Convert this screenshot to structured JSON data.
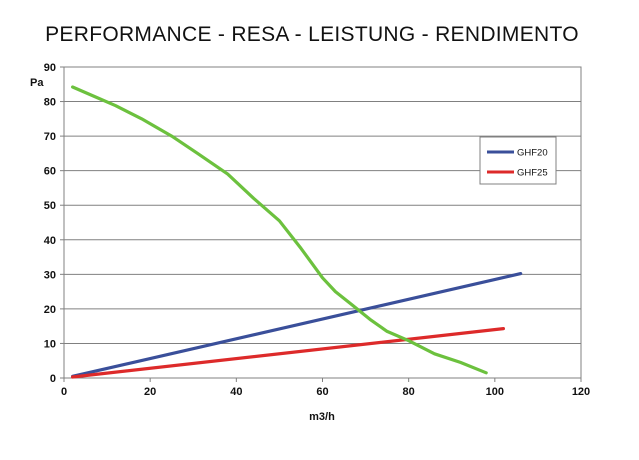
{
  "chart_data": {
    "type": "line",
    "title": "PERFORMANCE - RESA - LEISTUNG - RENDIMENTO",
    "xlabel": "m3/h",
    "ylabel": "Pa",
    "xlim": [
      0,
      120
    ],
    "ylim": [
      0,
      90
    ],
    "x_ticks": [
      0,
      20,
      40,
      60,
      80,
      100,
      120
    ],
    "y_ticks": [
      0,
      10,
      20,
      30,
      40,
      50,
      60,
      70,
      80,
      90
    ],
    "grid": "horizontal",
    "legend_position": "right",
    "series": [
      {
        "name": "GHF20",
        "color": "#3a4f9a",
        "legend": true,
        "points": [
          [
            2,
            0.5
          ],
          [
            106,
            30.2
          ]
        ]
      },
      {
        "name": "GHF25",
        "color": "#dd2a2a",
        "legend": true,
        "points": [
          [
            2,
            0.3
          ],
          [
            102,
            14.3
          ]
        ]
      },
      {
        "name": "",
        "color": "#6cc13e",
        "legend": false,
        "points": [
          [
            2,
            84.2
          ],
          [
            7,
            81.5
          ],
          [
            12,
            78.8
          ],
          [
            18,
            75
          ],
          [
            25,
            70
          ],
          [
            31,
            65
          ],
          [
            38,
            59
          ],
          [
            44,
            52
          ],
          [
            50,
            45.5
          ],
          [
            55,
            37.5
          ],
          [
            60,
            29
          ],
          [
            63,
            25
          ],
          [
            67,
            21
          ],
          [
            71,
            17
          ],
          [
            75,
            13.5
          ],
          [
            80,
            10.8
          ],
          [
            86,
            7
          ],
          [
            92,
            4.5
          ],
          [
            98,
            1.5
          ]
        ]
      }
    ]
  }
}
